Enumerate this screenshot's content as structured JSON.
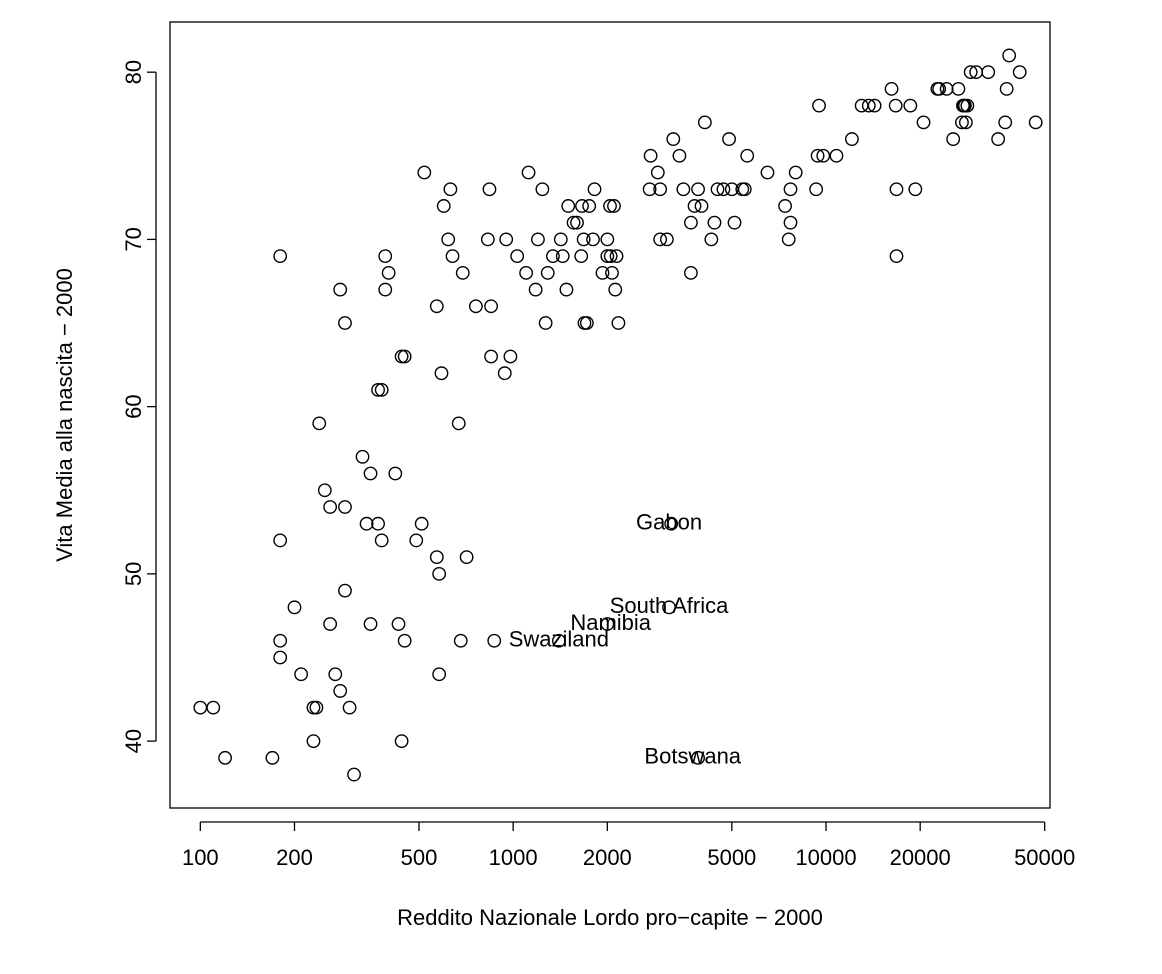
{
  "chart_data": {
    "type": "scatter",
    "title": "",
    "xlabel": "Reddito Nazionale Lordo pro−capite − 2000",
    "ylabel": "Vita Media alla nascita − 2000",
    "xscale": "log",
    "xlim": [
      80,
      52000
    ],
    "ylim": [
      36,
      83
    ],
    "x_ticks": [
      100,
      200,
      500,
      1000,
      2000,
      5000,
      10000,
      20000,
      50000
    ],
    "x_tick_labels": [
      "100",
      "200",
      "500",
      "1000",
      "2000",
      "5000",
      "10000",
      "20000",
      "50000"
    ],
    "y_ticks": [
      40,
      50,
      60,
      70,
      80
    ],
    "y_tick_labels": [
      "40",
      "50",
      "60",
      "70",
      "80"
    ],
    "grid": false,
    "legend": "none",
    "marker": "open-circle",
    "points": [
      [
        100,
        42
      ],
      [
        110,
        42
      ],
      [
        120,
        39
      ],
      [
        170,
        39
      ],
      [
        180,
        52
      ],
      [
        180,
        46
      ],
      [
        180,
        45
      ],
      [
        180,
        69
      ],
      [
        200,
        48
      ],
      [
        210,
        44
      ],
      [
        230,
        42
      ],
      [
        235,
        42
      ],
      [
        230,
        40
      ],
      [
        240,
        59
      ],
      [
        250,
        55
      ],
      [
        260,
        54
      ],
      [
        260,
        47
      ],
      [
        270,
        44
      ],
      [
        280,
        43
      ],
      [
        280,
        67
      ],
      [
        290,
        65
      ],
      [
        290,
        54
      ],
      [
        290,
        49
      ],
      [
        300,
        42
      ],
      [
        310,
        38
      ],
      [
        330,
        57
      ],
      [
        340,
        53
      ],
      [
        350,
        56
      ],
      [
        350,
        47
      ],
      [
        370,
        53
      ],
      [
        370,
        61
      ],
      [
        380,
        61
      ],
      [
        380,
        52
      ],
      [
        390,
        69
      ],
      [
        390,
        67
      ],
      [
        400,
        68
      ],
      [
        420,
        56
      ],
      [
        430,
        47
      ],
      [
        440,
        63
      ],
      [
        440,
        40
      ],
      [
        450,
        63
      ],
      [
        450,
        46
      ],
      [
        490,
        52
      ],
      [
        510,
        53
      ],
      [
        520,
        74
      ],
      [
        570,
        66
      ],
      [
        570,
        51
      ],
      [
        580,
        50
      ],
      [
        580,
        44
      ],
      [
        590,
        62
      ],
      [
        600,
        72
      ],
      [
        620,
        70
      ],
      [
        630,
        73
      ],
      [
        640,
        69
      ],
      [
        670,
        59
      ],
      [
        680,
        46
      ],
      [
        690,
        68
      ],
      [
        710,
        51
      ],
      [
        760,
        66
      ],
      [
        830,
        70
      ],
      [
        840,
        73
      ],
      [
        850,
        66
      ],
      [
        850,
        63
      ],
      [
        870,
        46
      ],
      [
        940,
        62
      ],
      [
        950,
        70
      ],
      [
        980,
        63
      ],
      [
        1030,
        69
      ],
      [
        1100,
        68
      ],
      [
        1120,
        74
      ],
      [
        1180,
        67
      ],
      [
        1200,
        70
      ],
      [
        1240,
        73
      ],
      [
        1270,
        65
      ],
      [
        1290,
        68
      ],
      [
        1340,
        69
      ],
      [
        1400,
        46
      ],
      [
        1420,
        70
      ],
      [
        1440,
        69
      ],
      [
        1480,
        67
      ],
      [
        1500,
        72
      ],
      [
        1560,
        71
      ],
      [
        1600,
        71
      ],
      [
        1650,
        69
      ],
      [
        1660,
        72
      ],
      [
        1680,
        70
      ],
      [
        1690,
        65
      ],
      [
        1720,
        65
      ],
      [
        1750,
        72
      ],
      [
        1800,
        70
      ],
      [
        1820,
        73
      ],
      [
        1930,
        68
      ],
      [
        2000,
        70
      ],
      [
        2000,
        69
      ],
      [
        2000,
        47
      ],
      [
        2040,
        72
      ],
      [
        2050,
        69
      ],
      [
        2070,
        68
      ],
      [
        2100,
        72
      ],
      [
        2120,
        67
      ],
      [
        2140,
        69
      ],
      [
        2170,
        65
      ],
      [
        2730,
        73
      ],
      [
        2750,
        75
      ],
      [
        2900,
        74
      ],
      [
        2950,
        73
      ],
      [
        2950,
        70
      ],
      [
        3100,
        70
      ],
      [
        3150,
        48
      ],
      [
        3200,
        53
      ],
      [
        3250,
        76
      ],
      [
        3400,
        75
      ],
      [
        3500,
        73
      ],
      [
        3700,
        71
      ],
      [
        3700,
        68
      ],
      [
        3800,
        72
      ],
      [
        3900,
        73
      ],
      [
        3900,
        39
      ],
      [
        4000,
        72
      ],
      [
        4100,
        77
      ],
      [
        4300,
        70
      ],
      [
        4400,
        71
      ],
      [
        4500,
        73
      ],
      [
        4700,
        73
      ],
      [
        4900,
        76
      ],
      [
        5000,
        73
      ],
      [
        5100,
        71
      ],
      [
        5400,
        73
      ],
      [
        5500,
        73
      ],
      [
        5600,
        75
      ],
      [
        6500,
        74
      ],
      [
        7400,
        72
      ],
      [
        7600,
        70
      ],
      [
        7700,
        73
      ],
      [
        7700,
        71
      ],
      [
        8000,
        74
      ],
      [
        9300,
        73
      ],
      [
        9400,
        75
      ],
      [
        9500,
        78
      ],
      [
        9800,
        75
      ],
      [
        10800,
        75
      ],
      [
        12100,
        76
      ],
      [
        13000,
        78
      ],
      [
        13700,
        78
      ],
      [
        14300,
        78
      ],
      [
        16200,
        79
      ],
      [
        16700,
        78
      ],
      [
        16800,
        73
      ],
      [
        16800,
        69
      ],
      [
        18600,
        78
      ],
      [
        19300,
        73
      ],
      [
        20500,
        77
      ],
      [
        22700,
        79
      ],
      [
        23000,
        79
      ],
      [
        24300,
        79
      ],
      [
        25500,
        76
      ],
      [
        26500,
        79
      ],
      [
        27200,
        77
      ],
      [
        27400,
        78
      ],
      [
        27600,
        78
      ],
      [
        27800,
        78
      ],
      [
        28000,
        77
      ],
      [
        28300,
        78
      ],
      [
        29000,
        80
      ],
      [
        30200,
        80
      ],
      [
        33000,
        80
      ],
      [
        35500,
        76
      ],
      [
        37400,
        77
      ],
      [
        37800,
        79
      ],
      [
        38500,
        81
      ],
      [
        41600,
        80
      ],
      [
        46800,
        77
      ]
    ],
    "annotations": [
      {
        "label": "Gabon",
        "x": 3150,
        "y": 53
      },
      {
        "label": "South Africa",
        "x": 3150,
        "y": 48
      },
      {
        "label": "Namibia",
        "x": 2050,
        "y": 47
      },
      {
        "label": "Swaziland",
        "x": 1400,
        "y": 46
      },
      {
        "label": "Botswana",
        "x": 3750,
        "y": 39
      }
    ]
  }
}
